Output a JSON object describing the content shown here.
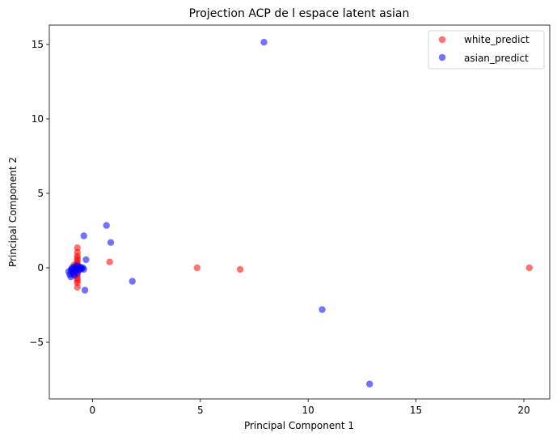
{
  "chart_data": {
    "type": "scatter",
    "title": "Projection ACP de l espace latent asian",
    "xlabel": "Principal Component 1",
    "ylabel": "Principal Component 2",
    "xlim": [
      -2.0,
      21.2
    ],
    "ylim": [
      -8.8,
      16.3
    ],
    "xticks": [
      0,
      5,
      10,
      15,
      20
    ],
    "yticks": [
      -5,
      0,
      5,
      10,
      15
    ],
    "grid": false,
    "legend_position": "top-right",
    "series": [
      {
        "name": "white_predict",
        "color": "#ff0000",
        "alpha": 0.55,
        "points": [
          [
            20.25,
            0.0
          ],
          [
            4.85,
            0.0
          ],
          [
            6.85,
            -0.1
          ],
          [
            0.8,
            0.4
          ],
          [
            -0.7,
            1.35
          ],
          [
            -0.7,
            1.05
          ],
          [
            -0.7,
            0.8
          ],
          [
            -0.7,
            0.65
          ],
          [
            -0.7,
            0.5
          ],
          [
            -0.7,
            0.35
          ],
          [
            -0.7,
            0.2
          ],
          [
            -0.7,
            -0.5
          ],
          [
            -0.7,
            -0.7
          ],
          [
            -0.7,
            -0.85
          ],
          [
            -0.7,
            -1.0
          ],
          [
            -0.7,
            -1.3
          ],
          [
            -0.75,
            0.1
          ],
          [
            -0.75,
            -0.2
          ],
          [
            -0.8,
            -0.3
          ],
          [
            -0.65,
            0.0
          ],
          [
            -0.6,
            -0.1
          ],
          [
            -0.85,
            0.2
          ],
          [
            -0.9,
            -0.4
          ]
        ]
      },
      {
        "name": "asian_predict",
        "color": "#0000ff",
        "alpha": 0.55,
        "points": [
          [
            7.95,
            15.15
          ],
          [
            12.85,
            -7.8
          ],
          [
            10.65,
            -2.8
          ],
          [
            1.85,
            -0.9
          ],
          [
            0.65,
            2.85
          ],
          [
            0.85,
            1.7
          ],
          [
            -0.4,
            2.15
          ],
          [
            -0.3,
            0.55
          ],
          [
            -0.35,
            -1.5
          ],
          [
            -1.1,
            -0.25
          ],
          [
            -1.05,
            -0.45
          ],
          [
            -1.0,
            -0.6
          ],
          [
            -0.95,
            -0.1
          ],
          [
            -0.9,
            -0.3
          ],
          [
            -0.85,
            0.05
          ],
          [
            -0.8,
            -0.2
          ],
          [
            -0.75,
            0.15
          ],
          [
            -0.7,
            -0.05
          ],
          [
            -0.65,
            0.1
          ],
          [
            -0.6,
            -0.15
          ],
          [
            -0.55,
            0.05
          ],
          [
            -0.5,
            -0.05
          ],
          [
            -0.45,
            0.0
          ],
          [
            -0.4,
            -0.1
          ],
          [
            -0.85,
            -0.5
          ],
          [
            -0.95,
            0.0
          ],
          [
            -1.0,
            -0.15
          ],
          [
            -0.7,
            -0.35
          ]
        ]
      }
    ]
  }
}
